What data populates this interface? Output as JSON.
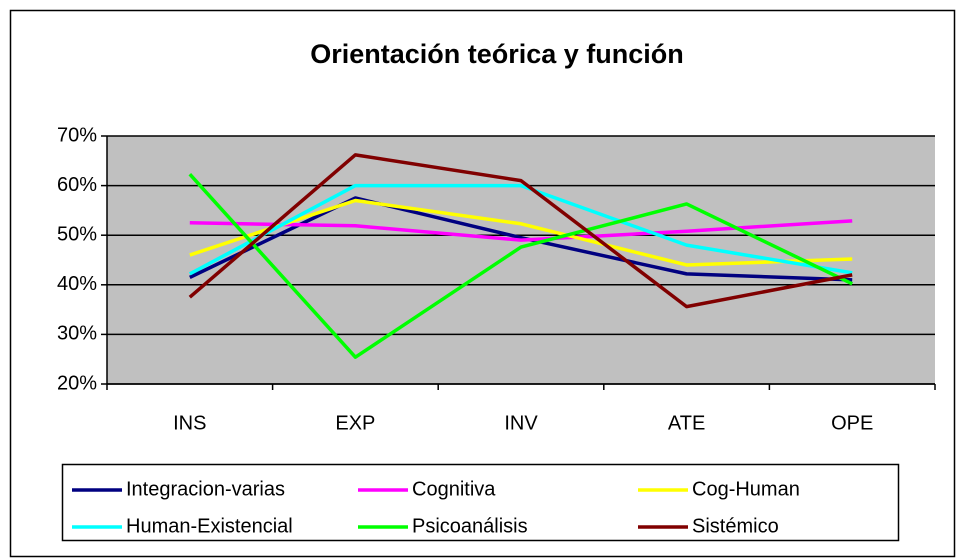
{
  "chart_data": {
    "type": "line",
    "title": "Orientación teórica y función",
    "categories": [
      "INS",
      "EXP",
      "INV",
      "ATE",
      "OPE"
    ],
    "series": [
      {
        "name": "Integracion-varias",
        "color": "#000080",
        "values": [
          41.5,
          57.5,
          49.5,
          42.2,
          41
        ]
      },
      {
        "name": "Cognitiva",
        "color": "#ff00ff",
        "values": [
          52.5,
          51.9,
          49,
          50.8,
          52.9
        ]
      },
      {
        "name": "Cog-Human",
        "color": "#ffff00",
        "values": [
          46,
          57,
          52.3,
          44,
          45.2
        ]
      },
      {
        "name": "Human-Existencial",
        "color": "#00ffff",
        "values": [
          42.2,
          60,
          60,
          48,
          42.4
        ]
      },
      {
        "name": "Psicoanálisis",
        "color": "#00ff00",
        "values": [
          62.3,
          25.4,
          47.6,
          56.3,
          40.2
        ]
      },
      {
        "name": "Sistémico",
        "color": "#800000",
        "values": [
          37.5,
          66.2,
          61,
          35.6,
          42
        ]
      }
    ],
    "ylim": [
      20,
      70
    ],
    "yticks": [
      {
        "value": 20,
        "label": "20%"
      },
      {
        "value": 30,
        "label": "30%"
      },
      {
        "value": 40,
        "label": "40%"
      },
      {
        "value": 50,
        "label": "50%"
      },
      {
        "value": 60,
        "label": "60%"
      },
      {
        "value": 70,
        "label": "70%"
      }
    ],
    "grid": true,
    "legend": "bottom",
    "plot_background": "#c0c0c0"
  }
}
